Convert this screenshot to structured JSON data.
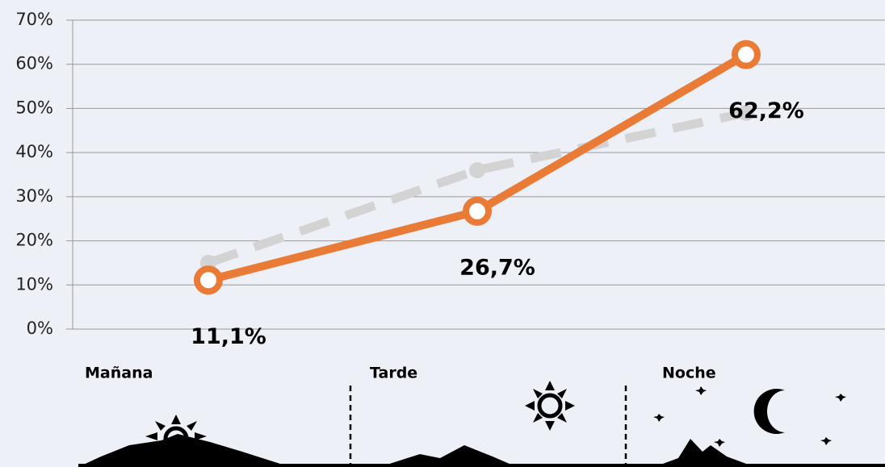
{
  "chart_data": {
    "type": "line",
    "categories": [
      "Mañana",
      "Tarde",
      "Noche"
    ],
    "series": [
      {
        "color": "#d3d3d3",
        "dashed": true,
        "values": [
          15,
          36,
          49
        ]
      },
      {
        "color": "#e97b36",
        "dashed": false,
        "values": [
          11.1,
          26.7,
          62.2
        ],
        "value_labels": [
          "11,1%",
          "26,7%",
          "62,2%"
        ]
      }
    ],
    "ylim": [
      0,
      70
    ],
    "yticks": [
      {
        "value": 0,
        "label": "0%"
      },
      {
        "value": 10,
        "label": "10%"
      },
      {
        "value": 20,
        "label": "20%"
      },
      {
        "value": 30,
        "label": "30%"
      },
      {
        "value": 40,
        "label": "40%"
      },
      {
        "value": 50,
        "label": "50%"
      },
      {
        "value": 60,
        "label": "60%"
      },
      {
        "value": 70,
        "label": "70%"
      }
    ],
    "grid": true
  }
}
